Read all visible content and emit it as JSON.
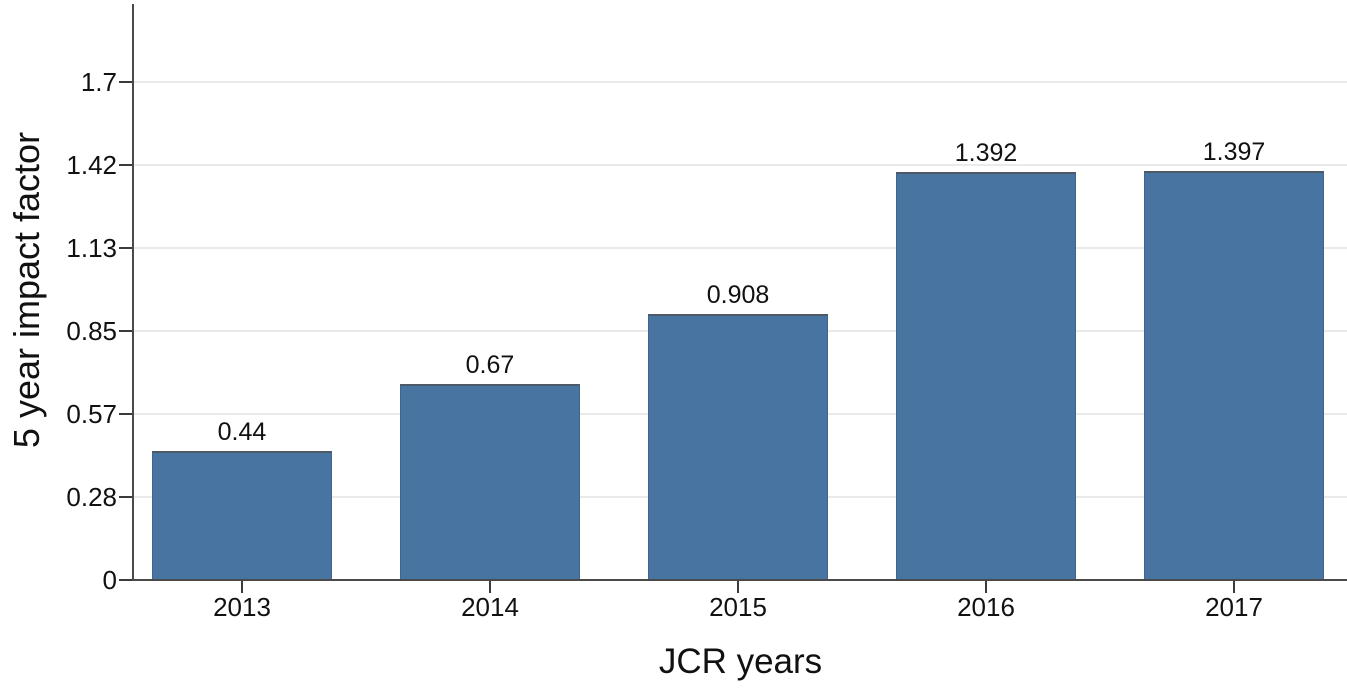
{
  "chart_data": {
    "type": "bar",
    "title": "",
    "xlabel": "JCR years",
    "ylabel": "5 year impact factor",
    "categories": [
      "2013",
      "2014",
      "2015",
      "2016",
      "2017"
    ],
    "values": [
      0.44,
      0.67,
      0.908,
      1.392,
      1.397
    ],
    "bar_value_labels": [
      "0.44",
      "0.67",
      "0.908",
      "1.392",
      "1.397"
    ],
    "ylim": [
      0,
      1.98
    ],
    "ytick_positions": [
      0,
      0.2833,
      0.5667,
      0.85,
      1.1333,
      1.4167,
      1.7
    ],
    "ytick_labels": [
      "0",
      "0.28",
      "0.57",
      "0.85",
      "1.13",
      "1.42",
      "1.7"
    ],
    "grid": true,
    "legend_position": "none",
    "colors": {
      "bar_fill": "#4874a2",
      "bar_edge": "#40658c",
      "bar_top_edge": "#4d5a66",
      "gridline": "#eaeaea",
      "axis_line": "#4a4a4a",
      "tick_mark": "#3b3b3b",
      "text": "#111111",
      "background": "#ffffff"
    }
  }
}
